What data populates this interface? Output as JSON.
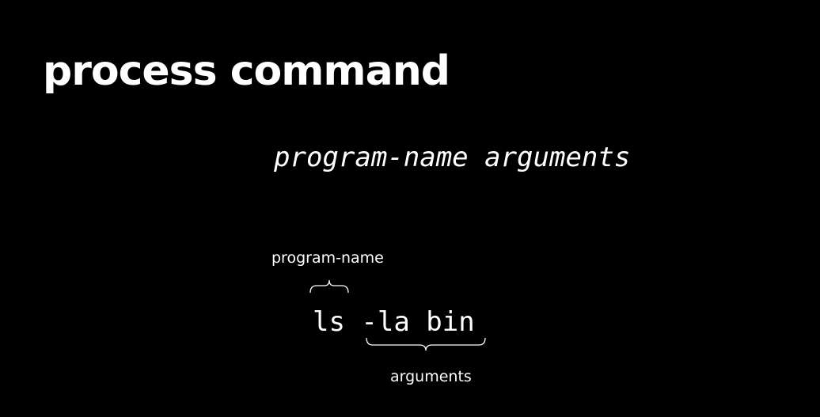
{
  "slide": {
    "title": "process command",
    "syntax": "program-name arguments",
    "example": {
      "command": "ls -la bin",
      "program_label": "program-name",
      "arguments_label": "arguments"
    }
  },
  "colors": {
    "background": "#000000",
    "text": "#ffffff"
  }
}
